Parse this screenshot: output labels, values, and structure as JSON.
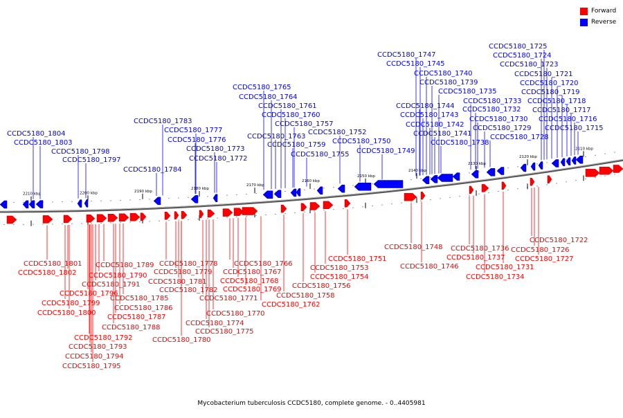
{
  "caption": "Mycobacterium tuberculosis CCDC5180, complete genome. - 0..4405981",
  "legend": [
    {
      "label": "Forward",
      "color": "#ff0000"
    },
    {
      "label": "Reverse",
      "color": "#0000ff"
    }
  ],
  "colors": {
    "forward": "#ff0000",
    "reverse": "#0000ff",
    "backbone": "#808080"
  },
  "ticks": [
    "2210 kbp",
    "2200 kbp",
    "2190 kbp",
    "2180 kbp",
    "2170 kbp",
    "2160 kbp",
    "2150 kbp",
    "2140 kbp",
    "2130 kbp",
    "2120 kbp",
    "2110 kbp"
  ],
  "reverse_labels": [
    "CCDC5180_1804",
    "CCDC5180_1803",
    "CCDC5180_1798",
    "CCDC5180_1797",
    "CCDC5180_1784",
    "CCDC5180_1783",
    "CCDC5180_1777",
    "CCDC5180_1776",
    "CCDC5180_1773",
    "CCDC5180_1772",
    "CCDC5180_1765",
    "CCDC5180_1764",
    "CCDC5180_1761",
    "CCDC5180_1760",
    "CCDC5180_1757",
    "CCDC5180_1763",
    "CCDC5180_1759",
    "CCDC5180_1755",
    "CCDC5180_1752",
    "CCDC5180_1750",
    "CCDC5180_1749",
    "CCDC5180_1747",
    "CCDC5180_1745",
    "CCDC5180_1740",
    "CCDC5180_1739",
    "CCDC5180_1735",
    "CCDC5180_1744",
    "CCDC5180_1743",
    "CCDC5180_1742",
    "CCDC5180_1741",
    "CCDC5180_1738",
    "CCDC5180_1733",
    "CCDC5180_1732",
    "CCDC5180_1730",
    "CCDC5180_1729",
    "CCDC5180_1728",
    "CCDC5180_1725",
    "CCDC5180_1724",
    "CCDC5180_1723",
    "CCDC5180_1721",
    "CCDC5180_1720",
    "CCDC5180_1719",
    "CCDC5180_1718",
    "CCDC5180_1717",
    "CCDC5180_1716",
    "CCDC5180_1715"
  ],
  "forward_labels": [
    "CCDC5180_1801",
    "CCDC5180_1802",
    "CCDC5180_1796",
    "CCDC5180_1799",
    "CCDC5180_1800",
    "CCDC5180_1792",
    "CCDC5180_1793",
    "CCDC5180_1794",
    "CCDC5180_1795",
    "CCDC5180_1791",
    "CCDC5180_1790",
    "CCDC5180_1789",
    "CCDC5180_1786",
    "CCDC5180_1785",
    "CCDC5180_1787",
    "CCDC5180_1788",
    "CCDC5180_1778",
    "CCDC5180_1779",
    "CCDC5180_1781",
    "CCDC5180_1782",
    "CCDC5180_1780",
    "CCDC5180_1771",
    "CCDC5180_1774",
    "CCDC5180_1775",
    "CCDC5180_1770",
    "CCDC5180_1766",
    "CCDC5180_1767",
    "CCDC5180_1768",
    "CCDC5180_1769",
    "CCDC5180_1762",
    "CCDC5180_1758",
    "CCDC5180_1756",
    "CCDC5180_1754",
    "CCDC5180_1753",
    "CCDC5180_1751",
    "CCDC5180_1748",
    "CCDC5180_1746",
    "CCDC5180_1736",
    "CCDC5180_1737",
    "CCDC5180_1734",
    "CCDC5180_1731",
    "CCDC5180_1722",
    "CCDC5180_1726",
    "CCDC5180_1727"
  ]
}
